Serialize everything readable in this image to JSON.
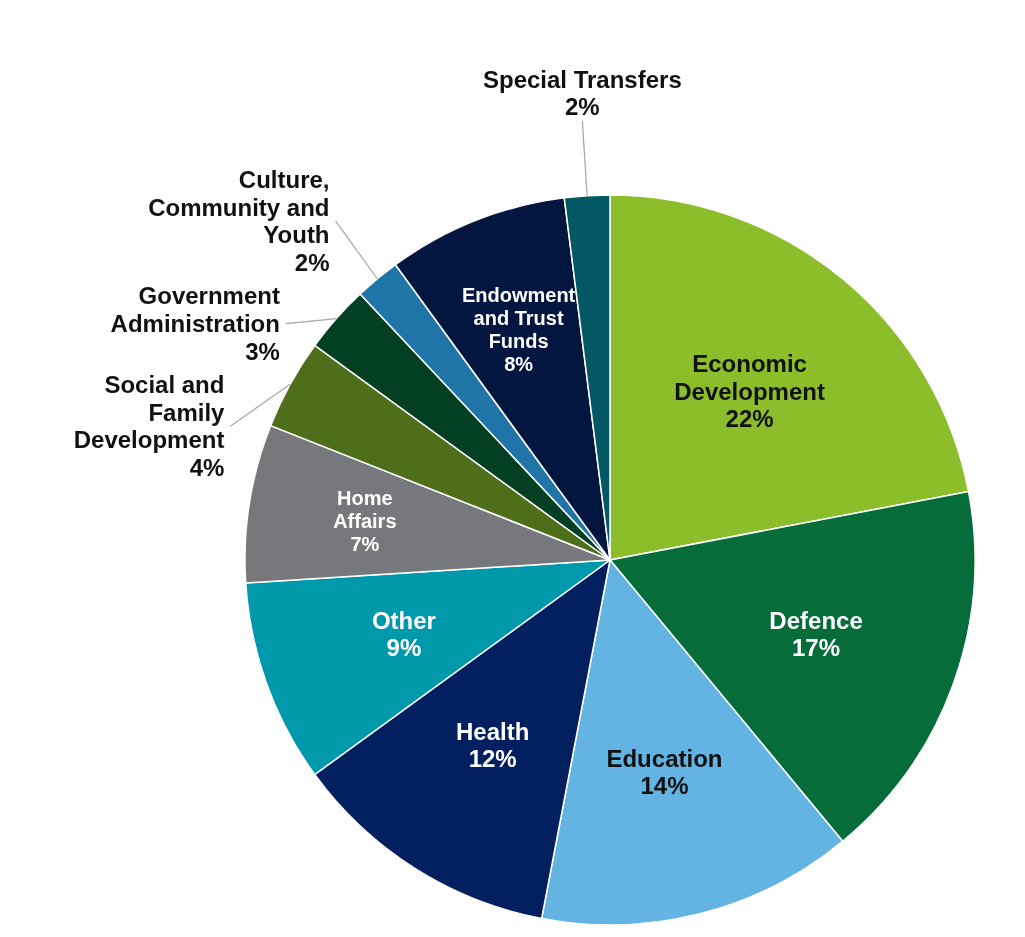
{
  "chart_data": {
    "type": "pie",
    "categories": [
      "Economic Development",
      "Defence",
      "Education",
      "Health",
      "Other",
      "Home Affairs",
      "Social and Family Development",
      "Government Administration",
      "Culture, Community and Youth",
      "Endowment and Trust Funds",
      "Special Transfers"
    ],
    "values": [
      22,
      17,
      14,
      12,
      9,
      7,
      4,
      3,
      2,
      8,
      2
    ],
    "colors": [
      "#8cbd2a",
      "#066d3a",
      "#63b3e3",
      "#022060",
      "#0099ab",
      "#76787b",
      "#4e6e1a",
      "#033f22",
      "#1f74a8",
      "#021640",
      "#035864"
    ],
    "value_labels": [
      "22%",
      "17%",
      "14%",
      "12%",
      "9%",
      "7%",
      "4%",
      "3%",
      "2%",
      "8%",
      "2%"
    ],
    "legend": false
  }
}
